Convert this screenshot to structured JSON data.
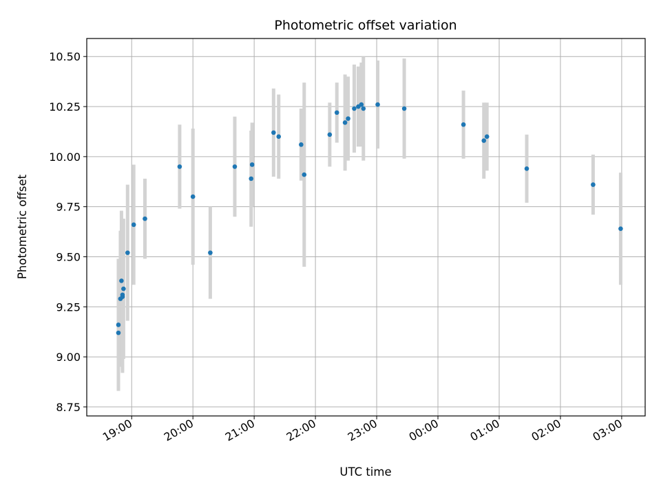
{
  "chart_data": {
    "type": "scatter",
    "title": "Photometric offset variation",
    "xlabel": "UTC time",
    "ylabel": "Photometric offset",
    "xlim": [
      "2000-01-01T18:16",
      "2000-01-02T03:23"
    ],
    "ylim": [
      8.705,
      10.59
    ],
    "grid": true,
    "x_ticks": [
      {
        "t": "2000-01-01T19:00",
        "label": "19:00"
      },
      {
        "t": "2000-01-01T20:00",
        "label": "20:00"
      },
      {
        "t": "2000-01-01T21:00",
        "label": "21:00"
      },
      {
        "t": "2000-01-01T22:00",
        "label": "22:00"
      },
      {
        "t": "2000-01-01T23:00",
        "label": "23:00"
      },
      {
        "t": "2000-01-02T00:00",
        "label": "00:00"
      },
      {
        "t": "2000-01-02T01:00",
        "label": "01:00"
      },
      {
        "t": "2000-01-02T02:00",
        "label": "02:00"
      },
      {
        "t": "2000-01-02T03:00",
        "label": "03:00"
      }
    ],
    "y_ticks": [
      {
        "v": 8.75,
        "label": "8.75"
      },
      {
        "v": 9.0,
        "label": "9.00"
      },
      {
        "v": 9.25,
        "label": "9.25"
      },
      {
        "v": 9.5,
        "label": "9.50"
      },
      {
        "v": 9.75,
        "label": "9.75"
      },
      {
        "v": 10.0,
        "label": "10.00"
      },
      {
        "v": 10.25,
        "label": "10.25"
      },
      {
        "v": 10.5,
        "label": "10.50"
      }
    ],
    "colors": {
      "point": "#1f77b4",
      "error_bar": "#d3d3d3",
      "grid": "#b0b0b0"
    },
    "series": [
      {
        "points": [
          {
            "t": "2000-01-01T18:47",
            "y": 9.12,
            "err": 0.0
          },
          {
            "t": "2000-01-01T18:47",
            "y": 9.16,
            "err": 0.33
          },
          {
            "t": "2000-01-01T18:49",
            "y": 9.29,
            "err": 0.34
          },
          {
            "t": "2000-01-01T18:50",
            "y": 9.38,
            "err": 0.35
          },
          {
            "t": "2000-01-01T18:51",
            "y": 9.3,
            "err": 0.38
          },
          {
            "t": "2000-01-01T18:51",
            "y": 9.31,
            "err": 0.38
          },
          {
            "t": "2000-01-01T18:52",
            "y": 9.34,
            "err": 0.35
          },
          {
            "t": "2000-01-01T18:56",
            "y": 9.52,
            "err": 0.34
          },
          {
            "t": "2000-01-01T19:02",
            "y": 9.66,
            "err": 0.3
          },
          {
            "t": "2000-01-01T19:13",
            "y": 9.69,
            "err": 0.2
          },
          {
            "t": "2000-01-01T19:47",
            "y": 9.95,
            "err": 0.21
          },
          {
            "t": "2000-01-01T20:00",
            "y": 9.8,
            "err": 0.34
          },
          {
            "t": "2000-01-01T20:17",
            "y": 9.52,
            "err": 0.23
          },
          {
            "t": "2000-01-01T20:41",
            "y": 9.95,
            "err": 0.25
          },
          {
            "t": "2000-01-01T20:57",
            "y": 9.89,
            "err": 0.24
          },
          {
            "t": "2000-01-01T20:58",
            "y": 9.96,
            "err": 0.21
          },
          {
            "t": "2000-01-01T21:19",
            "y": 10.12,
            "err": 0.22
          },
          {
            "t": "2000-01-01T21:24",
            "y": 10.1,
            "err": 0.21
          },
          {
            "t": "2000-01-01T21:46",
            "y": 10.06,
            "err": 0.18
          },
          {
            "t": "2000-01-01T21:49",
            "y": 9.91,
            "err": 0.46
          },
          {
            "t": "2000-01-01T22:14",
            "y": 10.11,
            "err": 0.16
          },
          {
            "t": "2000-01-01T22:21",
            "y": 10.22,
            "err": 0.15
          },
          {
            "t": "2000-01-01T22:29",
            "y": 10.17,
            "err": 0.24
          },
          {
            "t": "2000-01-01T22:32",
            "y": 10.19,
            "err": 0.21
          },
          {
            "t": "2000-01-01T22:38",
            "y": 10.24,
            "err": 0.22
          },
          {
            "t": "2000-01-01T22:42",
            "y": 10.25,
            "err": 0.2
          },
          {
            "t": "2000-01-01T22:45",
            "y": 10.26,
            "err": 0.21
          },
          {
            "t": "2000-01-01T22:47",
            "y": 10.24,
            "err": 0.26
          },
          {
            "t": "2000-01-01T23:01",
            "y": 10.26,
            "err": 0.22
          },
          {
            "t": "2000-01-01T23:27",
            "y": 10.24,
            "err": 0.25
          },
          {
            "t": "2000-01-02T00:25",
            "y": 10.16,
            "err": 0.17
          },
          {
            "t": "2000-01-02T00:45",
            "y": 10.08,
            "err": 0.19
          },
          {
            "t": "2000-01-02T00:48",
            "y": 10.1,
            "err": 0.17
          },
          {
            "t": "2000-01-02T01:27",
            "y": 9.94,
            "err": 0.17
          },
          {
            "t": "2000-01-02T02:32",
            "y": 9.86,
            "err": 0.15
          },
          {
            "t": "2000-01-02T02:59",
            "y": 9.64,
            "err": 0.28
          }
        ]
      }
    ]
  }
}
